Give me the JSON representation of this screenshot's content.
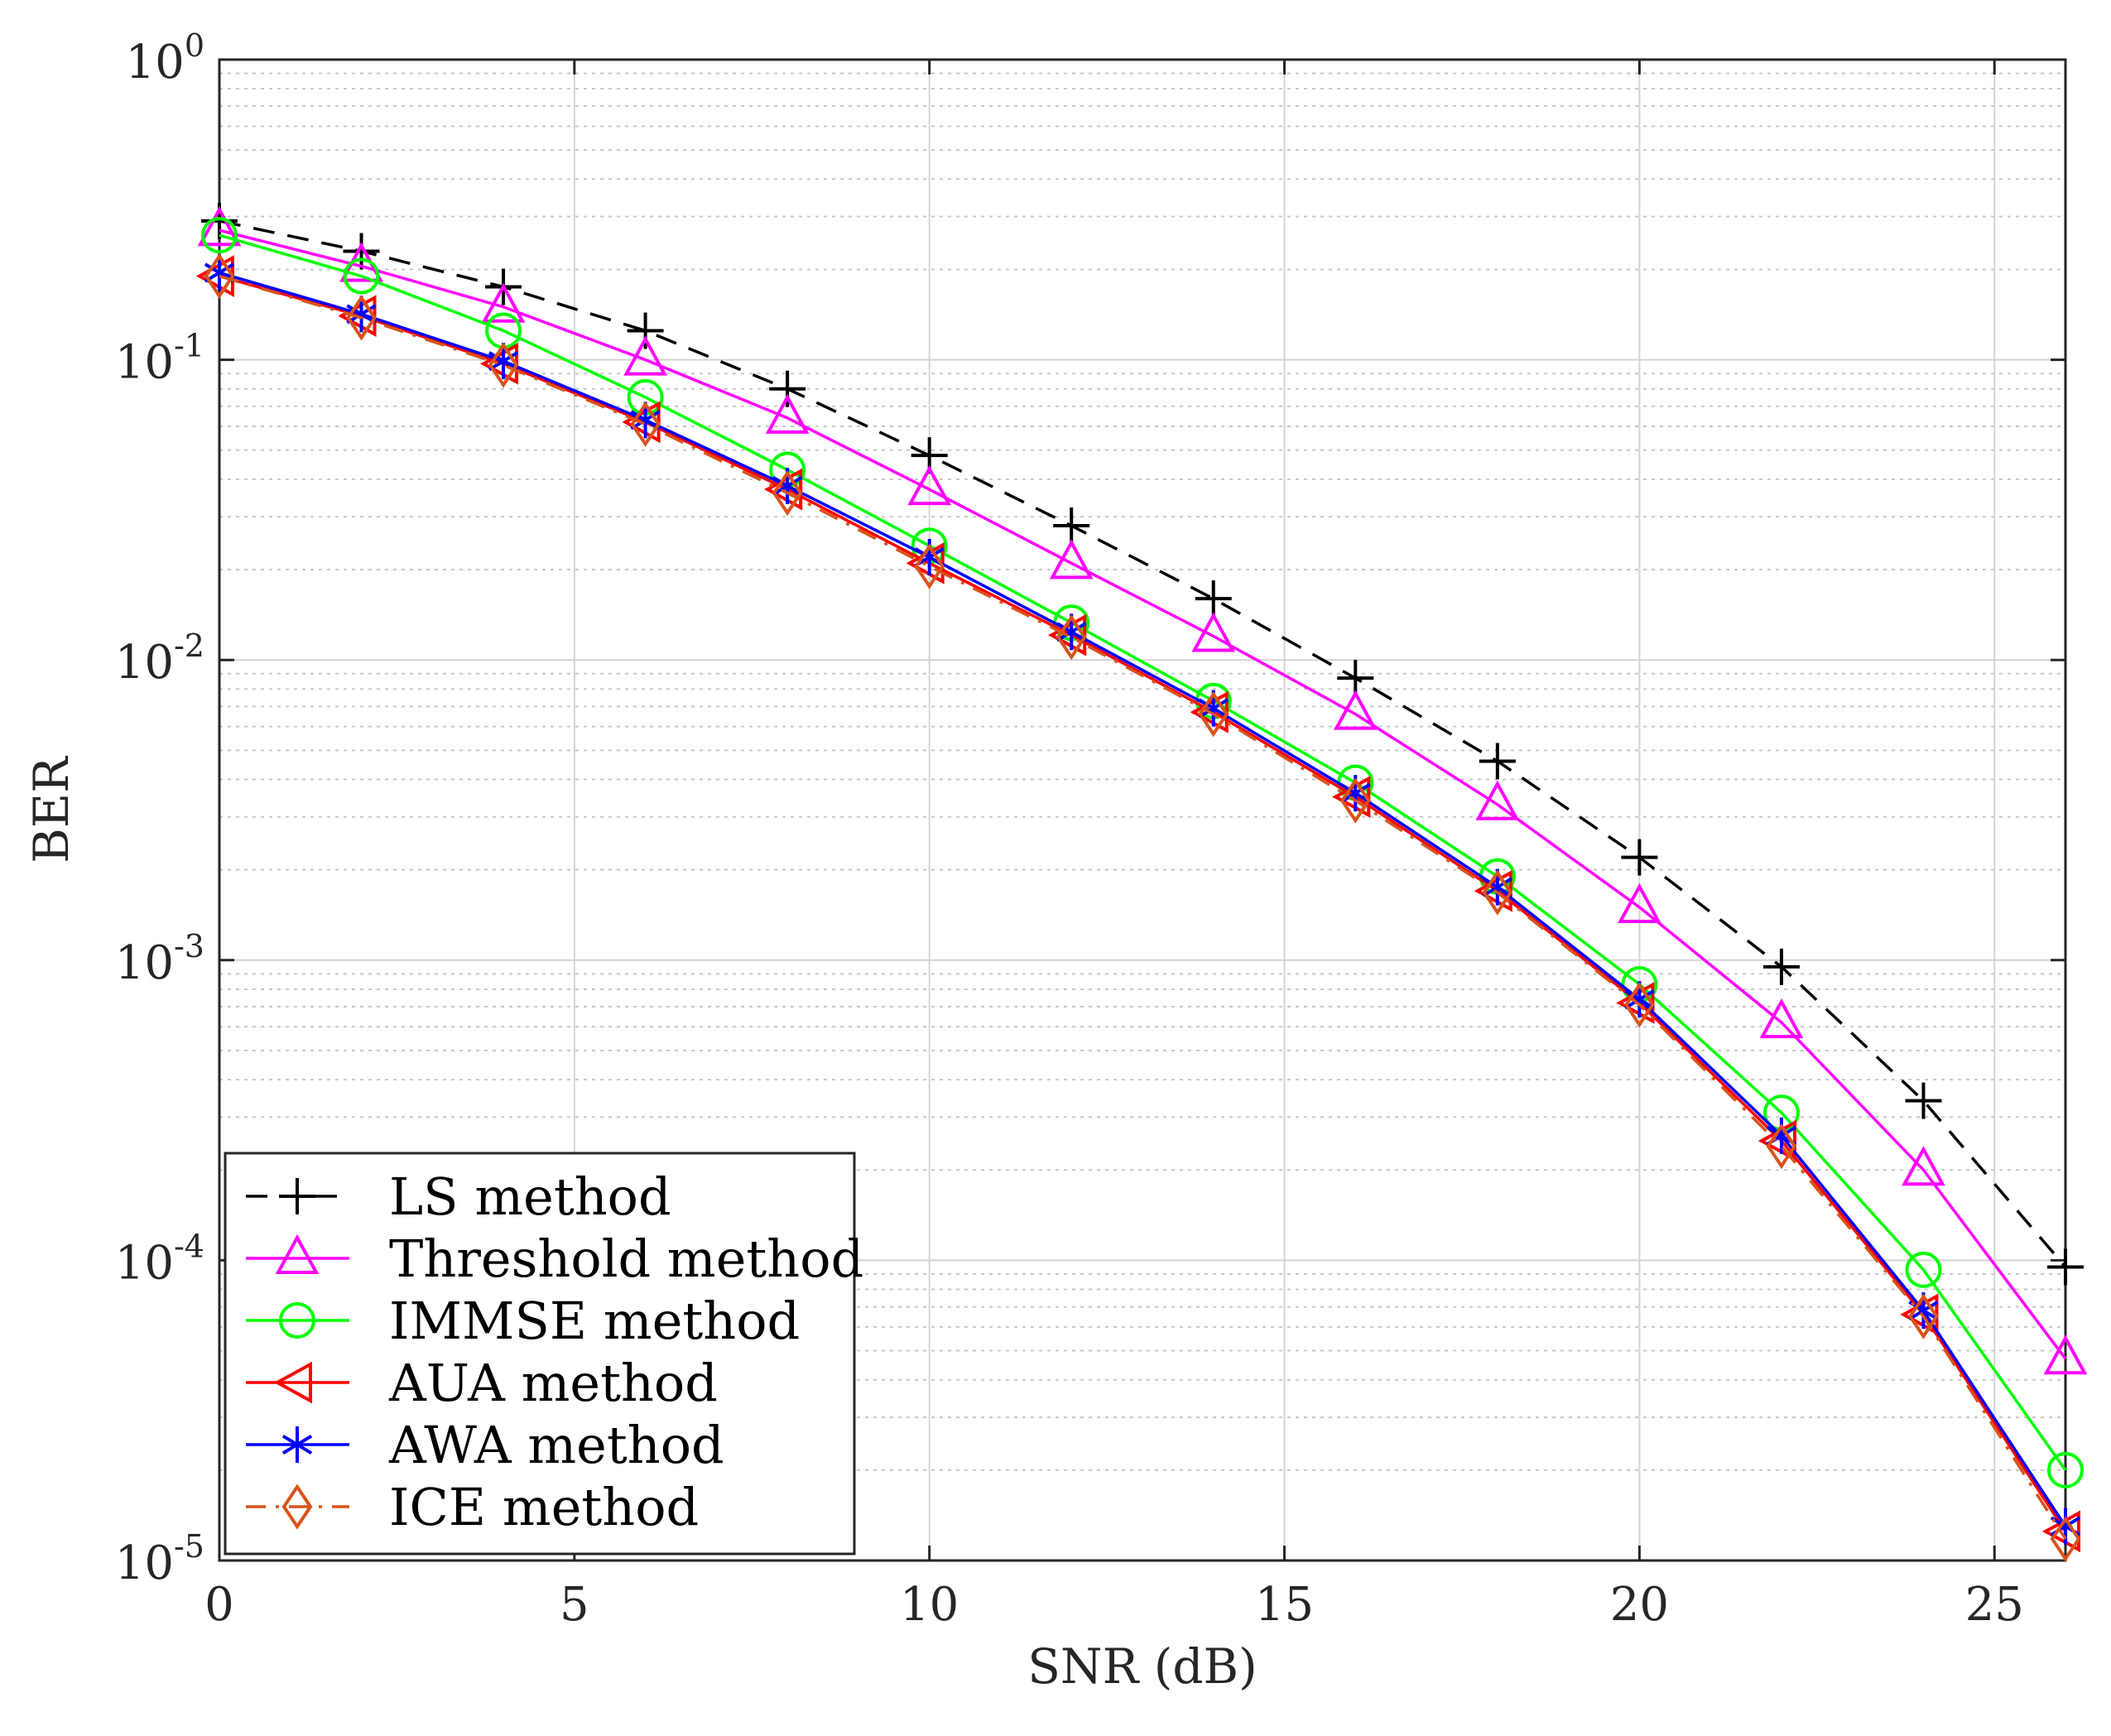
{
  "chart_data": {
    "type": "line",
    "title": "",
    "xlabel": "SNR (dB)",
    "ylabel": "BER",
    "xlim": [
      0,
      26
    ],
    "ylim": [
      1e-05,
      1
    ],
    "yscale": "log",
    "grid": true,
    "minor_grid": true,
    "legend_position": "bottom-left",
    "x": [
      0,
      2,
      4,
      6,
      8,
      10,
      12,
      14,
      16,
      18,
      20,
      22,
      24,
      26
    ],
    "x_ticks": [
      0,
      5,
      10,
      15,
      20,
      25
    ],
    "x_tick_labels": [
      "0",
      "5",
      "10",
      "15",
      "20",
      "25"
    ],
    "y_ticks": [
      {
        "value": 1,
        "base": "10",
        "exp": "0"
      },
      {
        "value": 0.1,
        "base": "10",
        "exp": "-1"
      },
      {
        "value": 0.01,
        "base": "10",
        "exp": "-2"
      },
      {
        "value": 0.001,
        "base": "10",
        "exp": "-3"
      },
      {
        "value": 0.0001,
        "base": "10",
        "exp": "-4"
      },
      {
        "value": 1e-05,
        "base": "10",
        "exp": "-5"
      }
    ],
    "series": [
      {
        "name": "LS method",
        "color": "#000000",
        "marker": "plus",
        "dash": "dashed",
        "values": [
          0.29,
          0.23,
          0.175,
          0.125,
          0.08,
          0.048,
          0.028,
          0.016,
          0.0087,
          0.0046,
          0.0022,
          0.00095,
          0.00034,
          9.5e-05
        ]
      },
      {
        "name": "Threshold method",
        "color": "#ff00ff",
        "marker": "triangle-up",
        "dash": "solid",
        "values": [
          0.27,
          0.205,
          0.15,
          0.1,
          0.064,
          0.037,
          0.021,
          0.012,
          0.0066,
          0.0033,
          0.0015,
          0.00062,
          0.0002,
          4.7e-05
        ]
      },
      {
        "name": "IMMSE method",
        "color": "#00ff00",
        "marker": "circle",
        "dash": "solid",
        "values": [
          0.26,
          0.19,
          0.125,
          0.075,
          0.043,
          0.024,
          0.0133,
          0.0073,
          0.0039,
          0.0019,
          0.00083,
          0.00031,
          9.3e-05,
          2e-05
        ]
      },
      {
        "name": "AUA method",
        "color": "#ff0000",
        "marker": "triangle-left",
        "dash": "solid",
        "values": [
          0.19,
          0.14,
          0.097,
          0.062,
          0.037,
          0.021,
          0.0121,
          0.0067,
          0.0035,
          0.0017,
          0.00072,
          0.00025,
          6.6e-05,
          1.25e-05
        ]
      },
      {
        "name": "AWA method",
        "color": "#0000ff",
        "marker": "asterisk",
        "dash": "solid",
        "values": [
          0.195,
          0.142,
          0.099,
          0.063,
          0.038,
          0.022,
          0.0124,
          0.0069,
          0.0036,
          0.00175,
          0.00074,
          0.00026,
          6.8e-05,
          1.3e-05
        ]
      },
      {
        "name": "ICE method",
        "color": "#d95319",
        "marker": "diamond",
        "dash": "dashdot",
        "values": [
          0.19,
          0.138,
          0.096,
          0.061,
          0.036,
          0.0205,
          0.0119,
          0.0066,
          0.0034,
          0.00168,
          0.00071,
          0.00024,
          6.5e-05,
          1.18e-05
        ]
      }
    ]
  }
}
